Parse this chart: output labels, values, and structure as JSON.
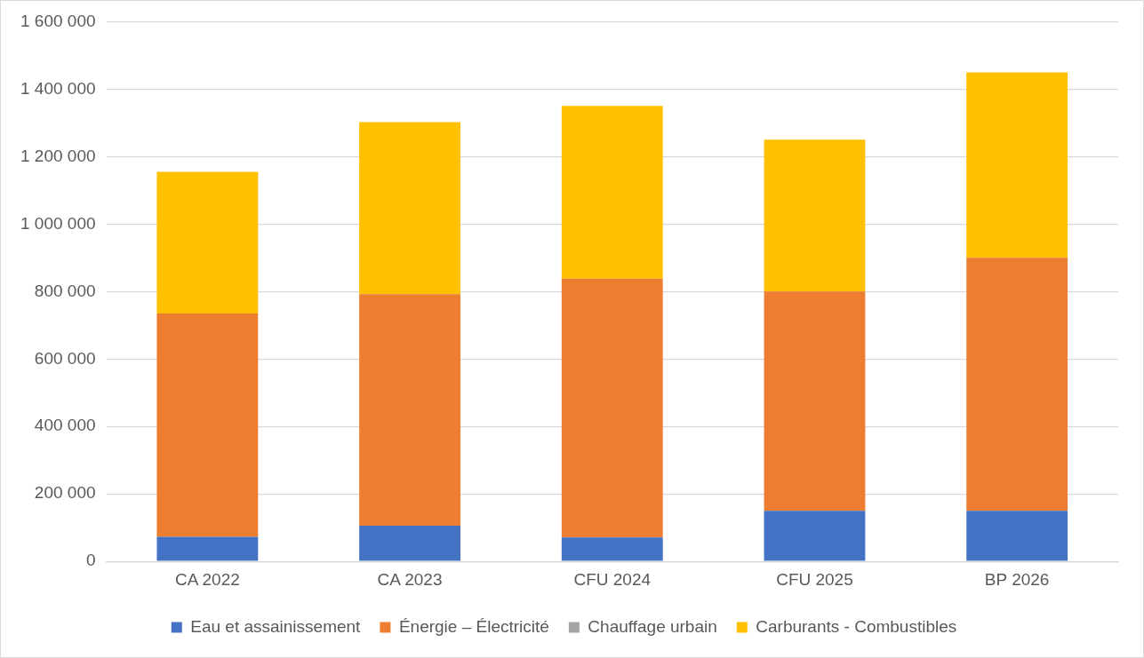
{
  "chart_data": {
    "type": "bar",
    "stacked": true,
    "categories": [
      "CA 2022",
      "CA 2023",
      "CFU 2024",
      "CFU 2025",
      "BP 2026"
    ],
    "series": [
      {
        "name": "Eau et assainissement",
        "color": "#4472c4",
        "values": [
          73000,
          106000,
          71000,
          150000,
          150000
        ]
      },
      {
        "name": "Énergie – Électricité",
        "color": "#ed7d31",
        "values": [
          662000,
          686000,
          767000,
          650000,
          750000
        ]
      },
      {
        "name": "Chauffage urbain",
        "color": "#a5a5a5",
        "values": [
          0,
          0,
          0,
          0,
          0
        ]
      },
      {
        "name": "Carburants - Combustibles",
        "color": "#ffc000",
        "values": [
          420000,
          510000,
          512000,
          450000,
          550000
        ]
      }
    ],
    "ylim": [
      0,
      1600000
    ],
    "yticks": [
      {
        "value": 0,
        "label": "0"
      },
      {
        "value": 200000,
        "label": "200 000"
      },
      {
        "value": 400000,
        "label": "400 000"
      },
      {
        "value": 600000,
        "label": "600 000"
      },
      {
        "value": 800000,
        "label": "800 000"
      },
      {
        "value": 1000000,
        "label": "1 000 000"
      },
      {
        "value": 1200000,
        "label": "1 200 000"
      },
      {
        "value": 1400000,
        "label": "1 400 000"
      },
      {
        "value": 1600000,
        "label": "1 600 000"
      }
    ],
    "grid": "y",
    "legend": "bottom"
  }
}
